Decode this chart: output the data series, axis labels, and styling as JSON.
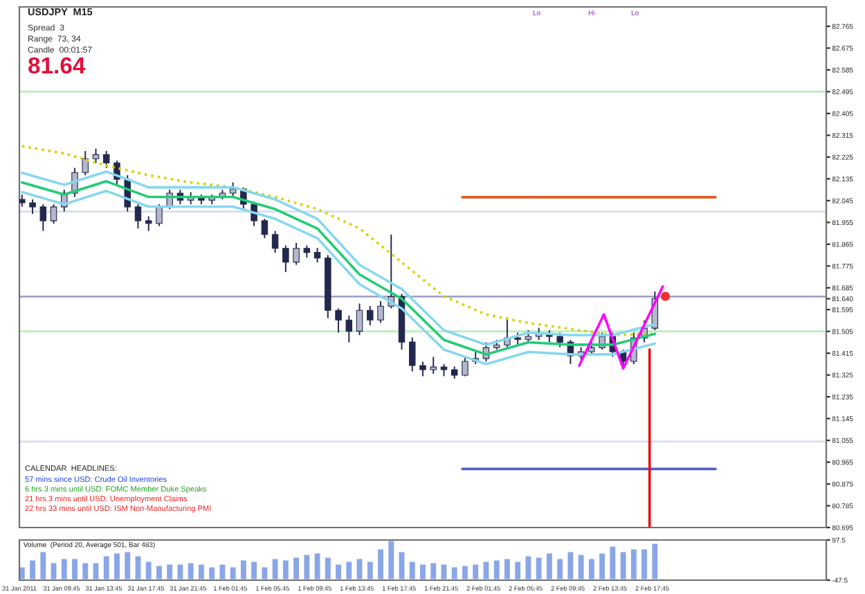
{
  "chart_data": [
    {
      "type": "candlestick",
      "title": "USDJPY  M15",
      "color": "#23284f",
      "x": [
        "2011-01-31T06:00",
        "2011-01-31T07:00",
        "2011-01-31T08:00",
        "2011-01-31T09:00",
        "2011-01-31T10:00",
        "2011-01-31T11:00",
        "2011-01-31T12:00",
        "2011-01-31T13:00",
        "2011-01-31T14:00",
        "2011-01-31T15:00",
        "2011-01-31T16:00",
        "2011-01-31T17:00",
        "2011-01-31T18:00",
        "2011-01-31T19:00",
        "2011-01-31T20:00",
        "2011-01-31T21:00",
        "2011-01-31T22:00",
        "2011-01-31T23:00",
        "2011-02-01T00:00",
        "2011-02-01T01:00",
        "2011-02-01T02:00",
        "2011-02-01T03:00",
        "2011-02-01T04:00",
        "2011-02-01T05:00",
        "2011-02-01T06:00",
        "2011-02-01T07:00",
        "2011-02-01T08:00",
        "2011-02-01T09:00",
        "2011-02-01T10:00",
        "2011-02-01T11:00",
        "2011-02-01T12:00",
        "2011-02-01T13:00",
        "2011-02-01T14:00",
        "2011-02-01T15:00",
        "2011-02-01T16:00",
        "2011-02-01T17:00",
        "2011-02-01T18:00",
        "2011-02-01T19:00",
        "2011-02-01T20:00",
        "2011-02-01T21:00",
        "2011-02-01T22:00",
        "2011-02-01T23:00",
        "2011-02-02T00:00",
        "2011-02-02T01:00",
        "2011-02-02T02:00",
        "2011-02-02T03:00",
        "2011-02-02T04:00",
        "2011-02-02T05:00",
        "2011-02-02T06:00",
        "2011-02-02T07:00",
        "2011-02-02T08:00",
        "2011-02-02T09:00",
        "2011-02-02T10:00",
        "2011-02-02T11:00",
        "2011-02-02T12:00",
        "2011-02-02T13:00",
        "2011-02-02T14:00",
        "2011-02-02T15:00",
        "2011-02-02T16:00",
        "2011-02-02T17:00",
        "2011-02-02T18:00"
      ],
      "ohlc": [
        [
          82.05,
          82.07,
          82.02,
          82.036
        ],
        [
          82.036,
          82.05,
          81.99,
          82.019
        ],
        [
          82.019,
          82.03,
          81.92,
          81.962
        ],
        [
          81.962,
          82.03,
          81.95,
          82.019
        ],
        [
          82.019,
          82.09,
          82.0,
          82.076
        ],
        [
          82.076,
          82.18,
          82.06,
          82.161
        ],
        [
          82.161,
          82.25,
          82.15,
          82.218
        ],
        [
          82.218,
          82.26,
          82.2,
          82.235
        ],
        [
          82.235,
          82.25,
          82.18,
          82.201
        ],
        [
          82.201,
          82.21,
          82.11,
          82.133
        ],
        [
          82.133,
          82.15,
          82.0,
          82.019
        ],
        [
          82.019,
          82.03,
          81.93,
          81.962
        ],
        [
          81.962,
          81.98,
          81.92,
          81.951
        ],
        [
          81.951,
          82.03,
          81.94,
          82.019
        ],
        [
          82.019,
          82.09,
          82.01,
          82.076
        ],
        [
          82.076,
          82.09,
          82.03,
          82.047
        ],
        [
          82.047,
          82.08,
          82.03,
          82.059
        ],
        [
          82.059,
          82.07,
          82.03,
          82.047
        ],
        [
          82.047,
          82.07,
          82.03,
          82.059
        ],
        [
          82.059,
          82.09,
          82.05,
          82.076
        ],
        [
          82.076,
          82.12,
          82.06,
          82.093
        ],
        [
          82.093,
          82.1,
          82.01,
          82.03
        ],
        [
          82.03,
          82.04,
          81.94,
          81.962
        ],
        [
          81.962,
          81.97,
          81.89,
          81.905
        ],
        [
          81.905,
          81.92,
          81.83,
          81.848
        ],
        [
          81.848,
          81.86,
          81.75,
          81.791
        ],
        [
          81.791,
          81.87,
          81.78,
          81.848
        ],
        [
          81.848,
          81.86,
          81.81,
          81.831
        ],
        [
          81.831,
          81.85,
          81.79,
          81.808
        ],
        [
          81.808,
          81.82,
          81.56,
          81.592
        ],
        [
          81.592,
          81.6,
          81.5,
          81.552
        ],
        [
          81.552,
          81.57,
          81.46,
          81.506
        ],
        [
          81.506,
          81.62,
          81.49,
          81.592
        ],
        [
          81.592,
          81.61,
          81.53,
          81.552
        ],
        [
          81.552,
          81.63,
          81.54,
          81.609
        ],
        [
          81.609,
          81.905,
          81.6,
          81.649
        ],
        [
          81.649,
          81.66,
          81.43,
          81.461
        ],
        [
          81.461,
          81.48,
          81.34,
          81.364
        ],
        [
          81.364,
          81.38,
          81.32,
          81.347
        ],
        [
          81.347,
          81.4,
          81.33,
          81.358
        ],
        [
          81.358,
          81.37,
          81.32,
          81.347
        ],
        [
          81.347,
          81.36,
          81.31,
          81.324
        ],
        [
          81.324,
          81.4,
          81.32,
          81.381
        ],
        [
          81.381,
          81.42,
          81.37,
          81.393
        ],
        [
          81.393,
          81.46,
          81.38,
          81.438
        ],
        [
          81.438,
          81.47,
          81.43,
          81.449
        ],
        [
          81.449,
          81.563,
          81.44,
          81.478
        ],
        [
          81.478,
          81.5,
          81.45,
          81.472
        ],
        [
          81.472,
          81.51,
          81.46,
          81.484
        ],
        [
          81.484,
          81.52,
          81.47,
          81.495
        ],
        [
          81.495,
          81.51,
          81.46,
          81.484
        ],
        [
          81.484,
          81.5,
          81.44,
          81.461
        ],
        [
          81.461,
          81.47,
          81.37,
          81.404
        ],
        [
          81.404,
          81.44,
          81.39,
          81.421
        ],
        [
          81.421,
          81.46,
          81.41,
          81.438
        ],
        [
          81.438,
          81.5,
          81.43,
          81.484
        ],
        [
          81.484,
          81.5,
          81.4,
          81.421
        ],
        [
          81.421,
          81.43,
          81.35,
          81.381
        ],
        [
          81.381,
          81.5,
          81.37,
          81.478
        ],
        [
          81.478,
          81.55,
          81.46,
          81.518
        ],
        [
          81.518,
          81.67,
          81.51,
          81.64
        ]
      ],
      "series": [
        {
          "type": "line",
          "color": "#d4d400",
          "line_style": "dotted",
          "x": [
            "2011-01-31T06:00",
            "2011-01-31T10:00",
            "2011-01-31T14:00",
            "2011-01-31T18:00",
            "2011-01-31T22:00",
            "2011-02-01T02:00",
            "2011-02-01T06:00",
            "2011-02-01T10:00",
            "2011-02-01T14:00",
            "2011-02-01T18:00",
            "2011-02-01T22:00",
            "2011-02-02T02:00",
            "2011-02-02T06:00",
            "2011-02-02T10:00",
            "2011-02-02T14:00",
            "2011-02-02T18:00"
          ],
          "values": [
            82.27,
            82.24,
            82.19,
            82.15,
            82.12,
            82.1,
            82.06,
            82.01,
            81.93,
            81.79,
            81.65,
            81.575,
            81.54,
            81.515,
            81.49,
            81.495
          ]
        },
        {
          "type": "line",
          "color": "#87d7f0",
          "line_style": "solid",
          "x": [
            "2011-01-31T06:00",
            "2011-01-31T10:00",
            "2011-01-31T14:00",
            "2011-01-31T18:00",
            "2011-01-31T22:00",
            "2011-02-01T02:00",
            "2011-02-01T06:00",
            "2011-02-01T10:00",
            "2011-02-01T14:00",
            "2011-02-01T18:00",
            "2011-02-01T22:00",
            "2011-02-02T02:00",
            "2011-02-02T06:00",
            "2011-02-02T10:00",
            "2011-02-02T14:00",
            "2011-02-02T18:00"
          ],
          "values": [
            82.16,
            82.11,
            82.165,
            82.1,
            82.1,
            82.1,
            82.05,
            81.97,
            81.78,
            81.68,
            81.51,
            81.45,
            81.5,
            81.49,
            81.49,
            81.535
          ]
        },
        {
          "type": "line",
          "color": "#87d7f0",
          "line_style": "solid",
          "x": [
            "2011-01-31T06:00",
            "2011-01-31T10:00",
            "2011-01-31T14:00",
            "2011-01-31T18:00",
            "2011-01-31T22:00",
            "2011-02-01T02:00",
            "2011-02-01T06:00",
            "2011-02-01T10:00",
            "2011-02-01T14:00",
            "2011-02-01T18:00",
            "2011-02-01T22:00",
            "2011-02-02T02:00",
            "2011-02-02T06:00",
            "2011-02-02T10:00",
            "2011-02-02T14:00",
            "2011-02-02T18:00"
          ],
          "values": [
            82.08,
            82.03,
            82.085,
            82.02,
            82.02,
            82.02,
            81.97,
            81.89,
            81.7,
            81.6,
            81.43,
            81.37,
            81.42,
            81.41,
            81.41,
            81.455
          ]
        },
        {
          "type": "line",
          "color": "#22cc77",
          "line_style": "solid",
          "x": [
            "2011-01-31T06:00",
            "2011-01-31T10:00",
            "2011-01-31T14:00",
            "2011-01-31T18:00",
            "2011-01-31T22:00",
            "2011-02-01T02:00",
            "2011-02-01T06:00",
            "2011-02-01T10:00",
            "2011-02-01T14:00",
            "2011-02-01T18:00",
            "2011-02-01T22:00",
            "2011-02-02T02:00",
            "2011-02-02T06:00",
            "2011-02-02T10:00",
            "2011-02-02T14:00",
            "2011-02-02T18:00"
          ],
          "values": [
            82.12,
            82.07,
            82.125,
            82.06,
            82.06,
            82.06,
            82.01,
            81.93,
            81.74,
            81.64,
            81.47,
            81.41,
            81.46,
            81.45,
            81.45,
            81.495
          ]
        },
        {
          "type": "line",
          "color": "#e05a20",
          "line_style": "solid",
          "x": [
            "2011-02-01T23:45",
            "2011-02-02T23:45"
          ],
          "values": [
            82.059,
            82.059
          ]
        },
        {
          "type": "line",
          "color": "#5060c0",
          "line_style": "solid",
          "x": [
            "2011-02-01T23:45",
            "2011-02-02T23:45"
          ],
          "values": [
            80.937,
            80.937
          ]
        },
        {
          "type": "line",
          "color": "#e81010",
          "line_style": "solid",
          "x": [
            "2011-02-02T17:30",
            "2011-02-02T17:30"
          ],
          "values": [
            81.43,
            80.7
          ]
        },
        {
          "type": "line",
          "color": "#ff00ff",
          "line_style": "solid",
          "x": [
            "2011-02-02T10:50",
            "2011-02-02T13:10",
            "2011-02-02T15:00",
            "2011-02-02T18:45"
          ],
          "values": [
            81.364,
            81.575,
            81.352,
            81.69
          ]
        },
        {
          "type": "scatter",
          "color": "#f03030",
          "marker": "circle",
          "x": [
            "2011-02-02T19:00"
          ],
          "values": [
            81.65
          ]
        }
      ],
      "ref_lines": [
        {
          "axis": "y",
          "value": 81.649,
          "color": "#a0a4c8",
          "line_style": "solid"
        },
        {
          "axis": "y",
          "value": 81.505,
          "color": "#b8f0b8",
          "line_style": "solid"
        },
        {
          "axis": "y",
          "value": 82.495,
          "color": "#b8f0b8",
          "line_style": "solid"
        },
        {
          "axis": "y",
          "value": 82.0,
          "color": "#d8dcf0",
          "line_style": "solid"
        },
        {
          "axis": "y",
          "value": 81.05,
          "color": "#d8dcf0",
          "line_style": "solid"
        }
      ],
      "annotations": [
        "Spread  3",
        "Range  73, 34",
        "Candle  00:01:57",
        "81.64",
        "CALENDAR  HEADLINES:",
        "57 mins since USD: Crude Oil Inventories",
        "6 hrs 3 mins until USD: FOMC Member Duke Speaks",
        "21 hrs 3 mins until USD: Unemployment Claims",
        "22 hrs 33 mins until USD: ISM Non-Manufacturing PMI",
        "Lo",
        "Hi",
        "Lo"
      ],
      "xlim": [
        "2011-01-31T05:45",
        "2011-02-03T10:15"
      ],
      "ylim": [
        80.695,
        82.845
      ],
      "yticks": [
        82.765,
        82.675,
        82.585,
        82.495,
        82.405,
        82.315,
        82.225,
        82.135,
        82.045,
        81.955,
        81.865,
        81.775,
        81.685,
        {
          "value": 81.64,
          "label": "81.640"
        },
        81.595,
        81.505,
        81.415,
        81.325,
        81.235,
        81.145,
        81.055,
        80.965,
        80.875,
        80.785,
        80.695
      ],
      "tick_labels": "y"
    },
    {
      "type": "bar",
      "title": "Volume  (Period 20, Average 501, Bar 483)",
      "color": "#8aa6e8",
      "x": [
        "2011-01-31T06:00",
        "2011-01-31T07:00",
        "2011-01-31T08:00",
        "2011-01-31T09:00",
        "2011-01-31T10:00",
        "2011-01-31T11:00",
        "2011-01-31T12:00",
        "2011-01-31T13:00",
        "2011-01-31T14:00",
        "2011-01-31T15:00",
        "2011-01-31T16:00",
        "2011-01-31T17:00",
        "2011-01-31T18:00",
        "2011-01-31T19:00",
        "2011-01-31T20:00",
        "2011-01-31T21:00",
        "2011-01-31T22:00",
        "2011-01-31T23:00",
        "2011-02-01T00:00",
        "2011-02-01T01:00",
        "2011-02-01T02:00",
        "2011-02-01T03:00",
        "2011-02-01T04:00",
        "2011-02-01T05:00",
        "2011-02-01T06:00",
        "2011-02-01T07:00",
        "2011-02-01T08:00",
        "2011-02-01T09:00",
        "2011-02-01T10:00",
        "2011-02-01T11:00",
        "2011-02-01T12:00",
        "2011-02-01T13:00",
        "2011-02-01T14:00",
        "2011-02-01T15:00",
        "2011-02-01T16:00",
        "2011-02-01T17:00",
        "2011-02-01T18:00",
        "2011-02-01T19:00",
        "2011-02-01T20:00",
        "2011-02-01T21:00",
        "2011-02-01T22:00",
        "2011-02-01T23:00",
        "2011-02-02T00:00",
        "2011-02-02T01:00",
        "2011-02-02T02:00",
        "2011-02-02T03:00",
        "2011-02-02T04:00",
        "2011-02-02T05:00",
        "2011-02-02T06:00",
        "2011-02-02T07:00",
        "2011-02-02T08:00",
        "2011-02-02T09:00",
        "2011-02-02T10:00",
        "2011-02-02T11:00",
        "2011-02-02T12:00",
        "2011-02-02T13:00",
        "2011-02-02T14:00",
        "2011-02-02T15:00",
        "2011-02-02T16:00",
        "2011-02-02T17:00",
        "2011-02-02T18:00"
      ],
      "values": [
        50,
        75,
        105,
        65,
        80,
        80,
        65,
        65,
        90,
        100,
        105,
        90,
        70,
        55,
        60,
        60,
        65,
        60,
        50,
        60,
        50,
        75,
        70,
        50,
        80,
        75,
        85,
        95,
        100,
        85,
        60,
        70,
        80,
        70,
        115,
        145,
        105,
        70,
        60,
        65,
        60,
        50,
        55,
        60,
        70,
        75,
        80,
        70,
        90,
        85,
        100,
        80,
        105,
        95,
        80,
        100,
        125,
        105,
        115,
        115,
        135
      ],
      "base": [
        -47.5,
        -47.5,
        -47.5,
        -47.5,
        -47.5,
        -47.5,
        -47.5,
        -47.5,
        -47.5,
        -47.5,
        -47.5,
        -47.5,
        -47.5,
        -47.5,
        -47.5,
        -47.5,
        -47.5,
        -47.5,
        -47.5,
        -47.5,
        -47.5,
        -47.5,
        -47.5,
        -47.5,
        -47.5,
        -47.5,
        -47.5,
        -47.5,
        -47.5,
        -47.5,
        -47.5,
        -47.5,
        -47.5,
        -47.5,
        -47.5,
        -47.5,
        -47.5,
        -47.5,
        -47.5,
        -47.5,
        -47.5,
        -47.5,
        -47.5,
        -47.5,
        -47.5,
        -47.5,
        -47.5,
        -47.5,
        -47.5,
        -47.5,
        -47.5,
        -47.5,
        -47.5,
        -47.5,
        -47.5,
        -47.5,
        -47.5,
        -47.5,
        -47.5,
        -47.5,
        -47.5
      ],
      "xlim": [
        "2011-01-31T05:45",
        "2011-02-03T10:15"
      ],
      "xticks": [
        {
          "value": "2011-01-31T05:45",
          "label": "31 Jan 2011"
        },
        {
          "value": "2011-01-31T09:45",
          "label": "31 Jan 09:45"
        },
        {
          "value": "2011-01-31T13:45",
          "label": "31 Jan 13:45"
        },
        {
          "value": "2011-01-31T17:45",
          "label": "31 Jan 17:45"
        },
        {
          "value": "2011-01-31T21:45",
          "label": "31 Jan 21:45"
        },
        {
          "value": "2011-02-01T01:45",
          "label": "1 Feb 01:45"
        },
        {
          "value": "2011-02-01T05:45",
          "label": "1 Feb 05:45"
        },
        {
          "value": "2011-02-01T09:45",
          "label": "1 Feb 09:45"
        },
        {
          "value": "2011-02-01T13:45",
          "label": "1 Feb 13:45"
        },
        {
          "value": "2011-02-01T17:45",
          "label": "1 Feb 17:45"
        },
        {
          "value": "2011-02-01T21:45",
          "label": "1 Feb 21:45"
        },
        {
          "value": "2011-02-02T01:45",
          "label": "2 Feb 01:45"
        },
        {
          "value": "2011-02-02T05:45",
          "label": "2 Feb 05:45"
        },
        {
          "value": "2011-02-02T09:45",
          "label": "2 Feb 09:45"
        },
        {
          "value": "2011-02-02T13:45",
          "label": "2 Feb 13:45"
        },
        {
          "value": "2011-02-02T17:45",
          "label": "2 Feb 17:45"
        }
      ],
      "ylim": [
        -47.5,
        97.5
      ],
      "yticks": [
        -47.5,
        97.5
      ]
    }
  ]
}
